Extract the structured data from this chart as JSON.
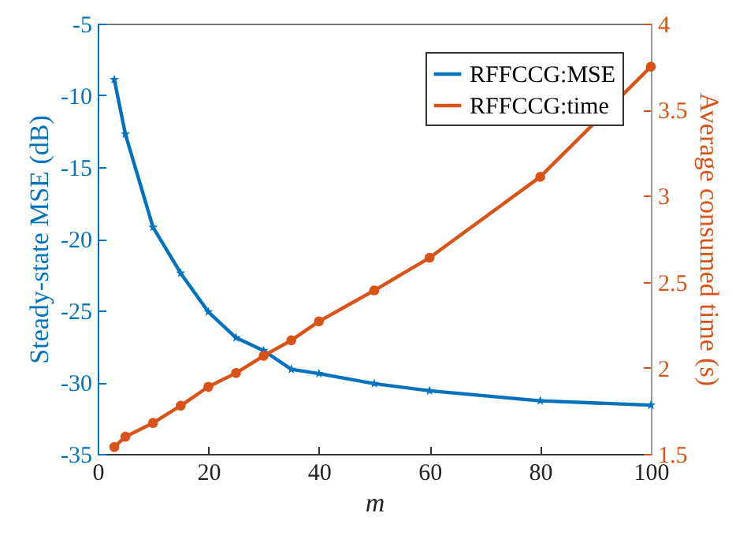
{
  "chart_data": {
    "type": "line",
    "xlabel": "m",
    "ylabel": "Steady-state MSE (dB)",
    "y2label": "Average consumed time (s)",
    "x": [
      3,
      5,
      10,
      15,
      20,
      25,
      30,
      35,
      40,
      50,
      60,
      80,
      100
    ],
    "series": [
      {
        "name": "RFFCCG:MSE",
        "color": "#0072bd",
        "marker": "star",
        "values": [
          -8.9,
          -12.7,
          -19.2,
          -22.4,
          -25.1,
          -26.9,
          -27.8,
          -29.1,
          -29.4,
          -30.1,
          -30.6,
          -31.3,
          -31.6
        ]
      },
      {
        "name": "RFFCCG:time",
        "color": "#d95319",
        "marker": "circle",
        "axis": "y2",
        "values": [
          1.54,
          1.6,
          1.68,
          1.78,
          1.89,
          1.97,
          2.07,
          2.16,
          2.27,
          2.45,
          2.64,
          3.11,
          3.75
        ]
      }
    ],
    "xlim": [
      0,
      100
    ],
    "xticks": [
      0,
      20,
      40,
      60,
      80,
      100
    ],
    "ylim": [
      -35,
      -5
    ],
    "yticks": [
      -35,
      -30,
      -25,
      -20,
      -15,
      -10,
      -5
    ],
    "y2lim": [
      1.5,
      4
    ],
    "y2ticks": [
      1.5,
      2,
      2.5,
      3,
      3.5,
      4
    ],
    "grid": false,
    "legend": "top right",
    "line_style": "solid"
  }
}
